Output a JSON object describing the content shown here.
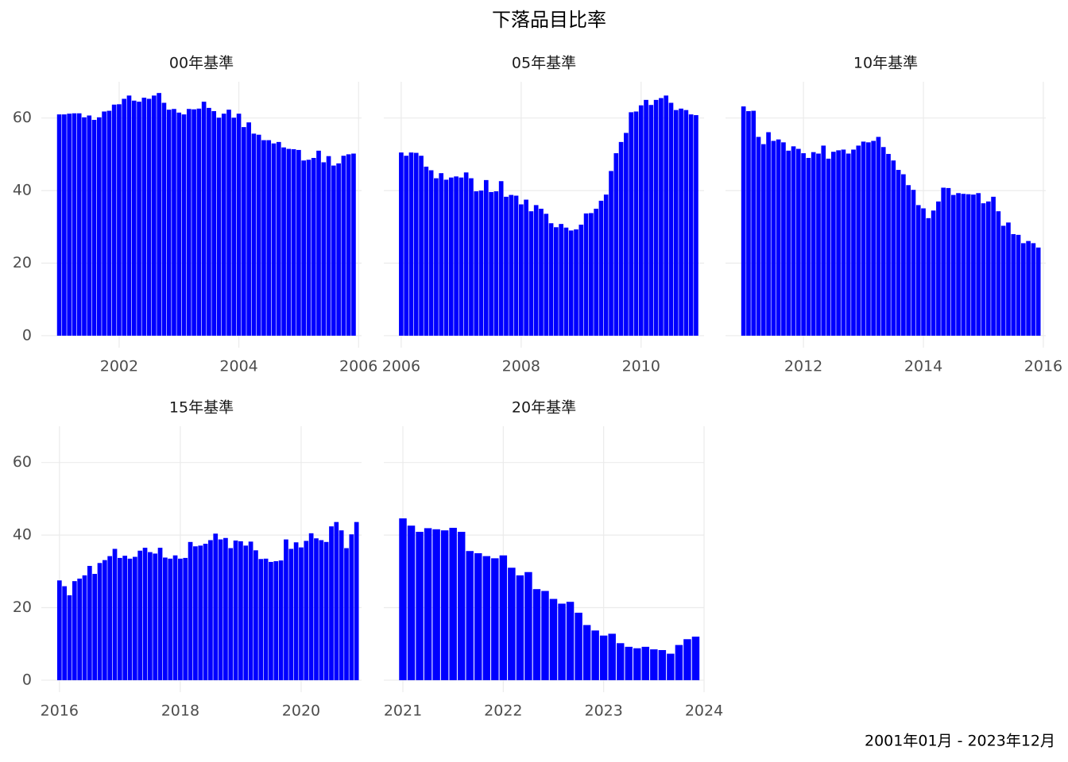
{
  "title": "下落品目比率",
  "caption": "2001年01月 - 2023年12月",
  "chart_data": [
    {
      "type": "bar",
      "title": "00年基準",
      "color": "#0000ff",
      "grid": true,
      "x": [
        "2001-01",
        "2001-02",
        "2001-03",
        "2001-04",
        "2001-05",
        "2001-06",
        "2001-07",
        "2001-08",
        "2001-09",
        "2001-10",
        "2001-11",
        "2001-12",
        "2002-01",
        "2002-02",
        "2002-03",
        "2002-04",
        "2002-05",
        "2002-06",
        "2002-07",
        "2002-08",
        "2002-09",
        "2002-10",
        "2002-11",
        "2002-12",
        "2003-01",
        "2003-02",
        "2003-03",
        "2003-04",
        "2003-05",
        "2003-06",
        "2003-07",
        "2003-08",
        "2003-09",
        "2003-10",
        "2003-11",
        "2003-12",
        "2004-01",
        "2004-02",
        "2004-03",
        "2004-04",
        "2004-05",
        "2004-06",
        "2004-07",
        "2004-08",
        "2004-09",
        "2004-10",
        "2004-11",
        "2004-12",
        "2005-01",
        "2005-02",
        "2005-03",
        "2005-04",
        "2005-05",
        "2005-06",
        "2005-07",
        "2005-08",
        "2005-09",
        "2005-10",
        "2005-11",
        "2005-12"
      ],
      "values": [
        61,
        61,
        61.2,
        61.3,
        61.3,
        60.2,
        60.7,
        59.5,
        60.2,
        61.8,
        62,
        63.7,
        63.8,
        65.3,
        66.2,
        64.8,
        64.5,
        65.6,
        65.3,
        66.2,
        66.9,
        64.2,
        62.3,
        62.5,
        61.5,
        61,
        62.5,
        62.4,
        62.6,
        64.5,
        62.8,
        61.9,
        60.1,
        61.2,
        62.3,
        60.1,
        61.2,
        57.5,
        58.8,
        55.7,
        55.4,
        53.9,
        53.9,
        53,
        53.4,
        51.9,
        51.5,
        51.4,
        51.2,
        48.3,
        48.5,
        49,
        51,
        47.8,
        49.5,
        46.9,
        47.5,
        49.6,
        50,
        50.2
      ],
      "xlim": [
        2000.7,
        2006.05
      ],
      "xticks": [
        2002,
        2004,
        2006
      ],
      "ylim": [
        -3.3,
        70
      ],
      "yticks": [
        0,
        20,
        40,
        60
      ]
    },
    {
      "type": "bar",
      "title": "05年基準",
      "color": "#0000ff",
      "grid": true,
      "x": [
        "2006-01",
        "2006-02",
        "2006-03",
        "2006-04",
        "2006-05",
        "2006-06",
        "2006-07",
        "2006-08",
        "2006-09",
        "2006-10",
        "2006-11",
        "2006-12",
        "2007-01",
        "2007-02",
        "2007-03",
        "2007-04",
        "2007-05",
        "2007-06",
        "2007-07",
        "2007-08",
        "2007-09",
        "2007-10",
        "2007-11",
        "2007-12",
        "2008-01",
        "2008-02",
        "2008-03",
        "2008-04",
        "2008-05",
        "2008-06",
        "2008-07",
        "2008-08",
        "2008-09",
        "2008-10",
        "2008-11",
        "2008-12",
        "2009-01",
        "2009-02",
        "2009-03",
        "2009-04",
        "2009-05",
        "2009-06",
        "2009-07",
        "2009-08",
        "2009-09",
        "2009-10",
        "2009-11",
        "2009-12",
        "2010-01",
        "2010-02",
        "2010-03",
        "2010-04",
        "2010-05",
        "2010-06",
        "2010-07",
        "2010-08",
        "2010-09",
        "2010-10",
        "2010-11",
        "2010-12"
      ],
      "values": [
        50.5,
        49.6,
        50.5,
        50.4,
        49.6,
        46.6,
        45.6,
        43.4,
        44.8,
        43,
        43.6,
        43.9,
        43.6,
        45,
        43.4,
        39.8,
        40,
        42.9,
        39.6,
        39.8,
        42.6,
        38.3,
        38.8,
        38.6,
        36.2,
        37.5,
        34.3,
        36,
        35,
        33.6,
        31,
        29.9,
        30.8,
        29.8,
        29,
        29.3,
        30.6,
        33.7,
        33.8,
        35,
        37.2,
        38.9,
        45.4,
        50.3,
        53.4,
        55.9,
        61.6,
        61.8,
        63.5,
        65,
        63.6,
        65,
        65.5,
        66.2,
        64.2,
        62.2,
        62.6,
        62.2,
        61,
        60.8
      ],
      "xlim": [
        2005.71,
        2011.05
      ],
      "xticks": [
        2006,
        2008,
        2010
      ],
      "ylim": [
        -3.3,
        70
      ],
      "yticks": [
        0,
        20,
        40,
        60
      ]
    },
    {
      "type": "bar",
      "title": "10年基準",
      "color": "#0000ff",
      "grid": true,
      "x": [
        "2011-01",
        "2011-02",
        "2011-03",
        "2011-04",
        "2011-05",
        "2011-06",
        "2011-07",
        "2011-08",
        "2011-09",
        "2011-10",
        "2011-11",
        "2011-12",
        "2012-01",
        "2012-02",
        "2012-03",
        "2012-04",
        "2012-05",
        "2012-06",
        "2012-07",
        "2012-08",
        "2012-09",
        "2012-10",
        "2012-11",
        "2012-12",
        "2013-01",
        "2013-02",
        "2013-03",
        "2013-04",
        "2013-05",
        "2013-06",
        "2013-07",
        "2013-08",
        "2013-09",
        "2013-10",
        "2013-11",
        "2013-12",
        "2014-01",
        "2014-02",
        "2014-03",
        "2014-04",
        "2014-05",
        "2014-06",
        "2014-07",
        "2014-08",
        "2014-09",
        "2014-10",
        "2014-11",
        "2014-12",
        "2015-01",
        "2015-02",
        "2015-03",
        "2015-04",
        "2015-05",
        "2015-06",
        "2015-07",
        "2015-08",
        "2015-09",
        "2015-10",
        "2015-11",
        "2015-12"
      ],
      "values": [
        63.2,
        61.9,
        62,
        54.8,
        52.8,
        56.1,
        53.7,
        54.1,
        53.3,
        51,
        52.2,
        51.5,
        50.3,
        49,
        50.6,
        50.2,
        52.4,
        48.8,
        50.7,
        51.1,
        51.3,
        50.2,
        51.3,
        52.4,
        53.5,
        53.3,
        53.7,
        54.8,
        52,
        50.1,
        48.3,
        45.7,
        44.5,
        41.5,
        40.2,
        36,
        35.1,
        32.4,
        34.5,
        37,
        40.8,
        40.7,
        38.8,
        39.3,
        39.1,
        39,
        38.9,
        39.3,
        36.5,
        37,
        38.3,
        34.3,
        30.3,
        31.2,
        28,
        27.8,
        25.5,
        26.1,
        25.5,
        24.3
      ],
      "xlim": [
        2010.7,
        2016.04
      ],
      "xticks": [
        2012,
        2014,
        2016
      ],
      "ylim": [
        -3.3,
        70
      ],
      "yticks": [
        0,
        20,
        40,
        60
      ]
    },
    {
      "type": "bar",
      "title": "15年基準",
      "color": "#0000ff",
      "grid": true,
      "x": [
        "2016-01",
        "2016-02",
        "2016-03",
        "2016-04",
        "2016-05",
        "2016-06",
        "2016-07",
        "2016-08",
        "2016-09",
        "2016-10",
        "2016-11",
        "2016-12",
        "2017-01",
        "2017-02",
        "2017-03",
        "2017-04",
        "2017-05",
        "2017-06",
        "2017-07",
        "2017-08",
        "2017-09",
        "2017-10",
        "2017-11",
        "2017-12",
        "2018-01",
        "2018-02",
        "2018-03",
        "2018-04",
        "2018-05",
        "2018-06",
        "2018-07",
        "2018-08",
        "2018-09",
        "2018-10",
        "2018-11",
        "2018-12",
        "2019-01",
        "2019-02",
        "2019-03",
        "2019-04",
        "2019-05",
        "2019-06",
        "2019-07",
        "2019-08",
        "2019-09",
        "2019-10",
        "2019-11",
        "2019-12",
        "2020-01",
        "2020-02",
        "2020-03",
        "2020-04",
        "2020-05",
        "2020-06",
        "2020-07",
        "2020-08",
        "2020-09",
        "2020-10",
        "2020-11",
        "2020-12"
      ],
      "values": [
        27.5,
        25.9,
        23.4,
        27.3,
        28,
        28.9,
        31.5,
        29.3,
        32.3,
        33.1,
        34.2,
        36.2,
        33.7,
        34.3,
        33.5,
        34,
        35.7,
        36.5,
        35.3,
        34.9,
        36.5,
        33.8,
        33.5,
        34.4,
        33.5,
        33.7,
        38.1,
        36.9,
        37.1,
        37.6,
        38.6,
        40.4,
        38.8,
        39.2,
        36.4,
        38.5,
        38.3,
        37.1,
        38.2,
        35.8,
        33.4,
        33.5,
        32.6,
        32.8,
        33,
        38.8,
        36.2,
        38,
        36.6,
        38.4,
        40.5,
        39.1,
        38.6,
        38.1,
        42.4,
        43.6,
        41.3,
        36.4,
        40.2,
        43.6
      ],
      "xlim": [
        2015.7,
        2021.0
      ],
      "xticks": [
        2016,
        2018,
        2020
      ],
      "ylim": [
        -3.3,
        70
      ],
      "yticks": [
        0,
        20,
        40,
        60
      ]
    },
    {
      "type": "bar",
      "title": "20年基準",
      "color": "#0000ff",
      "grid": true,
      "x": [
        "2021-01",
        "2021-02",
        "2021-03",
        "2021-04",
        "2021-05",
        "2021-06",
        "2021-07",
        "2021-08",
        "2021-09",
        "2021-10",
        "2021-11",
        "2021-12",
        "2022-01",
        "2022-02",
        "2022-03",
        "2022-04",
        "2022-05",
        "2022-06",
        "2022-07",
        "2022-08",
        "2022-09",
        "2022-10",
        "2022-11",
        "2022-12",
        "2023-01",
        "2023-02",
        "2023-03",
        "2023-04",
        "2023-05",
        "2023-06",
        "2023-07",
        "2023-08",
        "2023-09",
        "2023-10",
        "2023-11",
        "2023-12"
      ],
      "values": [
        44.6,
        42.6,
        40.9,
        41.9,
        41.6,
        41.3,
        42,
        40.9,
        35.6,
        35,
        34.2,
        33.6,
        34.4,
        31,
        28.9,
        29.8,
        25.1,
        24.6,
        22.4,
        21.1,
        21.6,
        18.6,
        15.2,
        13.7,
        12.3,
        12.8,
        10.2,
        9.2,
        8.8,
        9.2,
        8.5,
        8.3,
        7.3,
        9.7,
        11.3,
        12
      ],
      "xlim": [
        2020.81,
        2024.0
      ],
      "xticks": [
        2021,
        2022,
        2023,
        2024
      ],
      "ylim": [
        -3.3,
        70
      ],
      "yticks": [
        0,
        20,
        40,
        60
      ]
    }
  ]
}
